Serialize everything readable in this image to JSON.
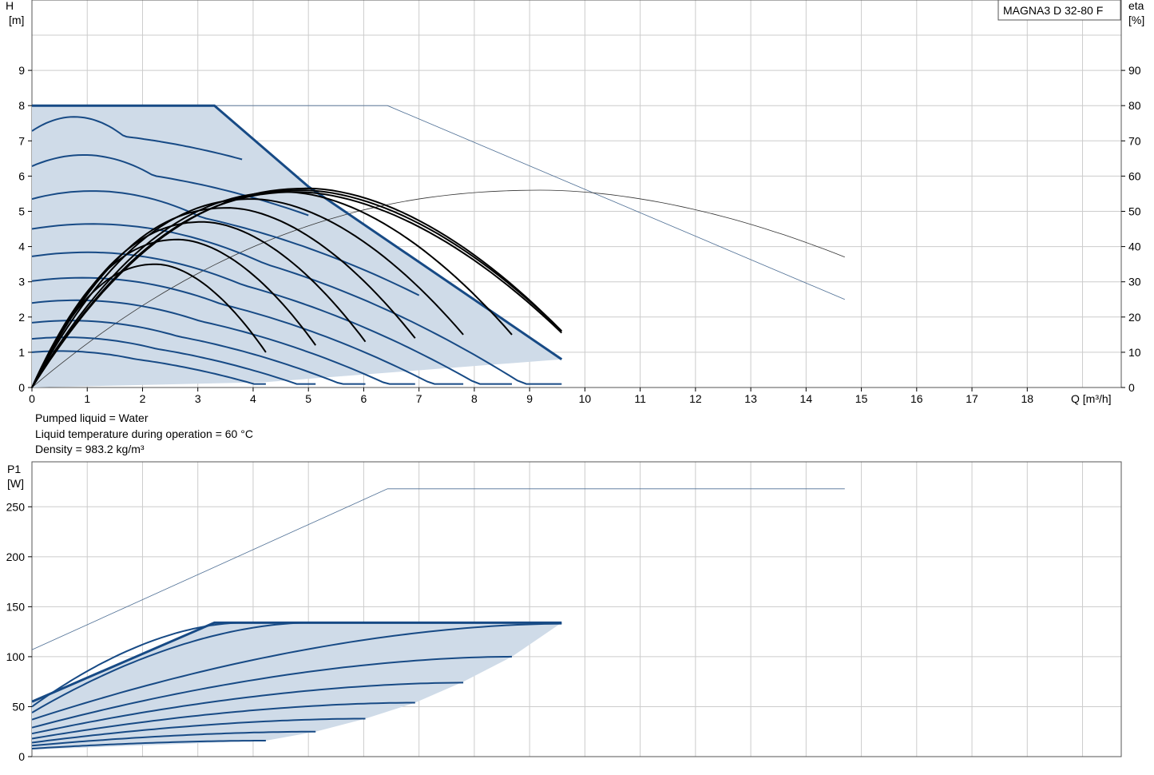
{
  "model": "MAGNA3 D 32-80 F",
  "info": {
    "pumped_liquid": "Pumped liquid = Water",
    "liquid_temperature": "Liquid temperature during operation = 60 °C",
    "density": "Density = 983.2 kg/m³"
  },
  "colors": {
    "grid": "#cccccc",
    "area_fill": "#cfdbe8",
    "pump_curve": "#174a85",
    "efficiency_curve": "#000000",
    "thin_line": "#4d6e94"
  },
  "chart_data": [
    {
      "type": "line",
      "title": "",
      "x_label": "Q [m³/h]",
      "y_label_top": "H",
      "y_label_unit": "[m]",
      "y2_label_top": "eta",
      "y2_label_unit": "[%]",
      "xlim": [
        0,
        19.7
      ],
      "ylim": [
        0,
        10
      ],
      "y2lim": [
        0,
        100
      ],
      "xticks": [
        "0",
        "1",
        "2",
        "3",
        "4",
        "5",
        "6",
        "7",
        "8",
        "9",
        "10",
        "11",
        "12",
        "13",
        "14",
        "15",
        "16",
        "17",
        "18"
      ],
      "yticks": [
        "0",
        "1",
        "2",
        "3",
        "4",
        "5",
        "6",
        "7",
        "8",
        "9"
      ],
      "y2ticks": [
        "0",
        "10",
        "20",
        "30",
        "40",
        "50",
        "60",
        "70",
        "80",
        "90"
      ],
      "grid": true,
      "envelope": [
        [
          0,
          8
        ],
        [
          3.3,
          8
        ],
        [
          5.0,
          5.7
        ],
        [
          9.58,
          0.8
        ],
        [
          4.2,
          0.15
        ],
        [
          0,
          0
        ]
      ],
      "speed_curves_H": [
        {
          "h0": 1.0,
          "a": 0.0558,
          "qmax": 4.23
        },
        {
          "h0": 1.38,
          "a": 0.0558,
          "qmax": 5.13
        },
        {
          "h0": 1.84,
          "a": 0.0558,
          "qmax": 6.03
        },
        {
          "h0": 2.4,
          "a": 0.0558,
          "qmax": 6.93
        },
        {
          "h0": 3.02,
          "a": 0.0558,
          "qmax": 7.8
        },
        {
          "h0": 3.72,
          "a": 0.0558,
          "qmax": 8.68
        },
        {
          "h0": 4.5,
          "a": 0.0558,
          "qmax": 9.58
        },
        {
          "h0": 5.35,
          "a": 0.0558,
          "qmax": 7.0
        },
        {
          "h0": 6.28,
          "a": 0.0558,
          "qmax": 5.0
        },
        {
          "h0": 7.28,
          "a": 0.0558,
          "qmax": 3.8
        }
      ],
      "max_H_curve": [
        [
          0,
          8
        ],
        [
          3.3,
          8
        ],
        [
          5.0,
          5.7
        ],
        [
          9.58,
          0.8
        ]
      ],
      "thin_H_curve": [
        [
          0,
          8
        ],
        [
          6.43,
          8
        ],
        [
          14.7,
          2.5
        ]
      ],
      "efficiency_curves": [
        {
          "qpeak": 2.25,
          "etapeak": 35,
          "qmax": 4.23,
          "etaend": 10
        },
        {
          "qpeak": 2.65,
          "etapeak": 42,
          "qmax": 5.13,
          "etaend": 12
        },
        {
          "qpeak": 3.1,
          "etapeak": 47,
          "qmax": 6.03,
          "etaend": 13
        },
        {
          "qpeak": 3.55,
          "etapeak": 51,
          "qmax": 6.93,
          "etaend": 14
        },
        {
          "qpeak": 4.0,
          "etapeak": 53.5,
          "qmax": 7.8,
          "etaend": 15
        },
        {
          "qpeak": 4.6,
          "etapeak": 55.5,
          "qmax": 8.68,
          "etaend": 15
        },
        {
          "qpeak": 5.0,
          "etapeak": 56.5,
          "qmax": 9.58,
          "etaend": 16
        },
        {
          "qpeak": 4.9,
          "etapeak": 56,
          "qmax": 9.58,
          "etaend": 16
        },
        {
          "qpeak": 4.8,
          "etapeak": 55.5,
          "qmax": 9.58,
          "etaend": 15.5
        }
      ],
      "thin_eta_curve": {
        "qpeak": 9.25,
        "etapeak": 56,
        "qmax": 14.7,
        "etaend": 37
      }
    },
    {
      "type": "line",
      "title": "",
      "y_label_top": "P1",
      "y_label_unit": "[W]",
      "xlim": [
        0,
        19.7
      ],
      "ylim": [
        0,
        295
      ],
      "yticks": [
        "0",
        "50",
        "100",
        "150",
        "200",
        "250"
      ],
      "grid": true,
      "envelope": [
        [
          0,
          55
        ],
        [
          3.3,
          134
        ],
        [
          9.58,
          134
        ],
        [
          8.68,
          100
        ],
        [
          7.8,
          75
        ],
        [
          6.93,
          54
        ],
        [
          6.03,
          38
        ],
        [
          5.13,
          25
        ],
        [
          4.23,
          16
        ],
        [
          0,
          7
        ]
      ],
      "max_P_curve": [
        [
          0,
          55
        ],
        [
          3.3,
          134
        ],
        [
          9.58,
          134
        ]
      ],
      "thin_P_curve": [
        [
          0,
          107
        ],
        [
          6.43,
          268
        ],
        [
          14.7,
          268
        ]
      ],
      "power_curves": [
        {
          "p0": 8,
          "qmax": 4.23,
          "pmax": 16
        },
        {
          "p0": 11,
          "qmax": 5.13,
          "pmax": 25
        },
        {
          "p0": 14,
          "qmax": 6.03,
          "pmax": 38
        },
        {
          "p0": 18,
          "qmax": 6.93,
          "pmax": 54
        },
        {
          "p0": 23,
          "qmax": 7.8,
          "pmax": 74
        },
        {
          "p0": 29,
          "qmax": 8.68,
          "pmax": 100
        },
        {
          "p0": 37,
          "qmax": 9.58,
          "pmax": 133
        },
        {
          "p0": 44,
          "qmax": 5.0,
          "pmax": 134
        },
        {
          "p0": 50,
          "qmax": 3.8,
          "pmax": 134
        }
      ]
    }
  ]
}
